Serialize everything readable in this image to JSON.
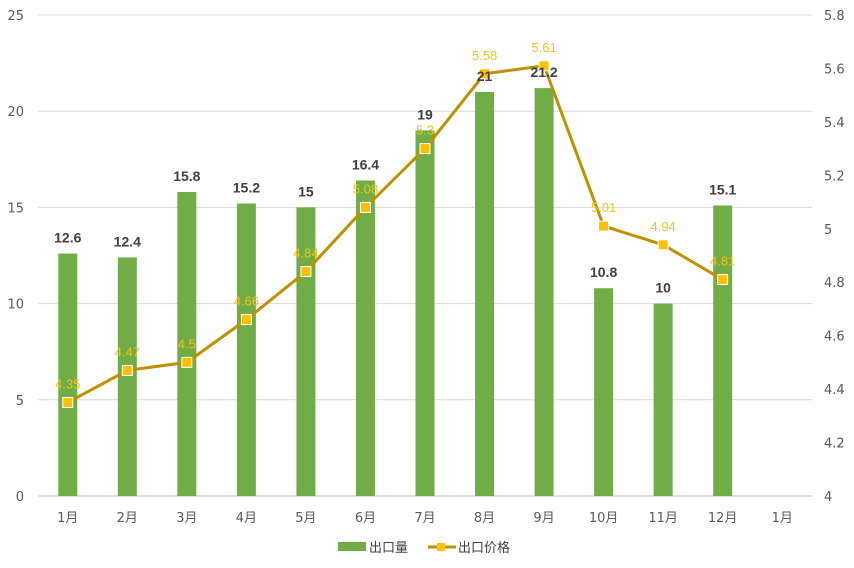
{
  "chart_data": {
    "type": "bar",
    "categories": [
      "1月",
      "2月",
      "3月",
      "4月",
      "5月",
      "6月",
      "7月",
      "8月",
      "9月",
      "10月",
      "11月",
      "12月",
      "1月"
    ],
    "series": [
      {
        "name": "出口量",
        "type": "bar",
        "axis": "left",
        "color": "#70ad47",
        "values": [
          12.6,
          12.4,
          15.8,
          15.2,
          15,
          16.4,
          19,
          21,
          21.2,
          10.8,
          10,
          15.1,
          null
        ],
        "labels": [
          "12.6",
          "12.4",
          "15.8",
          "15.2",
          "15",
          "16.4",
          "19",
          "21",
          "21.2",
          "10.8",
          "10",
          "15.1",
          ""
        ]
      },
      {
        "name": "出口价格",
        "type": "line",
        "axis": "right",
        "color": "#bf9000",
        "marker_color": "#ffc000",
        "label_color": "#f2c21b",
        "values": [
          4.35,
          4.47,
          4.5,
          4.66,
          4.84,
          5.08,
          5.3,
          5.58,
          5.61,
          5.01,
          4.94,
          4.81,
          null
        ],
        "labels": [
          "4.35",
          "4.47",
          "4.5",
          "4.66",
          "4.84",
          "5.08",
          "5.3",
          "5.58",
          "5.61",
          "5.01",
          "4.94",
          "4.81",
          ""
        ]
      }
    ],
    "y_left": {
      "min": 0,
      "max": 25,
      "step": 5,
      "ticks": [
        "0",
        "5",
        "10",
        "15",
        "20",
        "25"
      ]
    },
    "y_right": {
      "min": 4,
      "max": 5.8,
      "step": 0.2,
      "ticks": [
        "4",
        "4.2",
        "4.4",
        "4.6",
        "4.8",
        "5",
        "5.2",
        "5.4",
        "5.6",
        "5.8"
      ]
    },
    "grid": true,
    "legend_position": "bottom",
    "legend": [
      "出口量",
      "出口价格"
    ],
    "gridline_color": "#d9d9d9",
    "axis_line_color": "#bfbfbf"
  }
}
